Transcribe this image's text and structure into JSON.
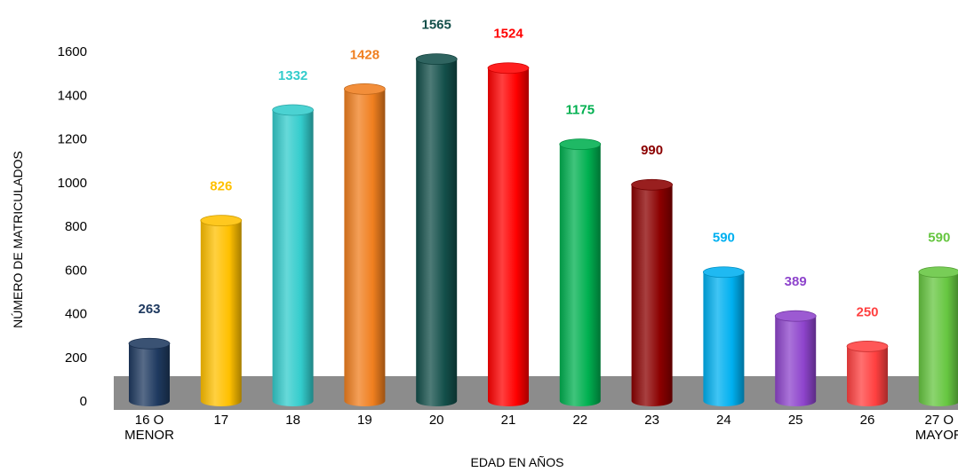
{
  "chart_data": {
    "type": "bar",
    "style": "3d-cylinder",
    "title": "",
    "xlabel": "EDAD EN AÑOS",
    "ylabel": "NÚMERO DE MATRICULADOS",
    "ylim": [
      0,
      1600
    ],
    "yticks": [
      0,
      200,
      400,
      600,
      800,
      1000,
      1200,
      1400,
      1600
    ],
    "grid": false,
    "legend": "none",
    "categories": [
      [
        "16 O",
        "MENOR"
      ],
      [
        "17"
      ],
      [
        "18"
      ],
      [
        "19"
      ],
      [
        "20"
      ],
      [
        "21"
      ],
      [
        "22"
      ],
      [
        "23"
      ],
      [
        "24"
      ],
      [
        "25"
      ],
      [
        "26"
      ],
      [
        "27 O",
        "MAYOR"
      ]
    ],
    "values": [
      263,
      826,
      1332,
      1428,
      1565,
      1524,
      1175,
      990,
      590,
      389,
      250,
      590
    ],
    "colors": [
      "#1f3a60",
      "#ffc000",
      "#33cccc",
      "#f07f1f",
      "#134f4a",
      "#ff0000",
      "#00b050",
      "#8b0000",
      "#00b0f0",
      "#8e44cc",
      "#ff4040",
      "#66c640"
    ],
    "label_colors": [
      "#1f3a60",
      "#ffc000",
      "#33cccc",
      "#f07f1f",
      "#134f4a",
      "#ff0000",
      "#00b050",
      "#8b0000",
      "#00b0f0",
      "#8e44cc",
      "#ff4040",
      "#66c640"
    ],
    "floor_color": "#8c8c8c"
  }
}
